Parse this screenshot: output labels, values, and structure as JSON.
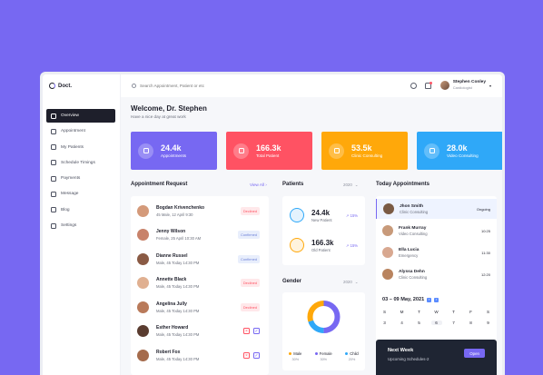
{
  "app": {
    "logo_text": "Doct."
  },
  "sidebar": {
    "items": [
      {
        "label": "Overview",
        "icon": "grid-icon",
        "active": true
      },
      {
        "label": "Appointment",
        "icon": "calendar-icon"
      },
      {
        "label": "My Patients",
        "icon": "user-icon"
      },
      {
        "label": "Schedule Timings",
        "icon": "clock-icon"
      },
      {
        "label": "Payments",
        "icon": "wallet-icon"
      },
      {
        "label": "Message",
        "icon": "chat-icon"
      },
      {
        "label": "Blog",
        "icon": "document-icon"
      },
      {
        "label": "Settings",
        "icon": "gear-icon"
      }
    ]
  },
  "topbar": {
    "search_placeholder": "Search Appointment, Patient or etc",
    "user_name": "Stephen Conley",
    "user_role": "Cardiologist"
  },
  "welcome": {
    "title": "Welcome, Dr. Stephen",
    "subtitle": "Have a nice day at great work"
  },
  "stats": [
    {
      "value": "24.4k",
      "label": "Appointments",
      "color": "#7768f2",
      "icon": "calendar-icon"
    },
    {
      "value": "166.3k",
      "label": "Total Patient",
      "color": "#ff5263",
      "icon": "user-icon"
    },
    {
      "value": "53.5k",
      "label": "Clinic Consulting",
      "color": "#ffa80a",
      "icon": "clinic-icon"
    },
    {
      "value": "28.0k",
      "label": "Video Consulting",
      "color": "#2fa8f8",
      "icon": "video-icon"
    }
  ],
  "requests": {
    "title": "Appointment Request",
    "view_all": "View All",
    "rows": [
      {
        "name": "Bogdan Krivenchenko",
        "meta": "45 Male, 12 April 9:30",
        "status": "Declined"
      },
      {
        "name": "Jenny Wilson",
        "meta": "Female, 25 April 10:30 AM",
        "status": "Confirmed"
      },
      {
        "name": "Dianne Russel",
        "meta": "Male, 45 Today 14:30 PM",
        "status": "Confirmed"
      },
      {
        "name": "Annette Black",
        "meta": "Male, 45 Today 14:30 PM",
        "status": "Declined"
      },
      {
        "name": "Angelina Jully",
        "meta": "Male, 45 Today 14:30 PM",
        "status": "Declined"
      },
      {
        "name": "Esther Howard",
        "meta": "Male, 45 Today 14:30 PM",
        "status": ""
      },
      {
        "name": "Robert Fox",
        "meta": "Male, 45 Today 14:30 PM",
        "status": ""
      }
    ]
  },
  "patients": {
    "title": "Patients",
    "year": "2020",
    "rows": [
      {
        "value": "24.4k",
        "label": "New Patient",
        "trend": "15%"
      },
      {
        "value": "166.3k",
        "label": "Old Patient",
        "trend": "15%"
      }
    ]
  },
  "gender": {
    "title": "Gender",
    "year": "2020",
    "legend": [
      {
        "label": "Male",
        "pct": "30%",
        "color": "#ffa80a"
      },
      {
        "label": "Female",
        "pct": "30%",
        "color": "#7768f2"
      },
      {
        "label": "Child",
        "pct": "20%",
        "color": "#2fa8f8"
      }
    ]
  },
  "today": {
    "title": "Today Appointments",
    "rows": [
      {
        "name": "Jhon Smith",
        "type": "Clinic Consulting",
        "time": "Ongoing",
        "active": true
      },
      {
        "name": "Frank Murray",
        "type": "Video Consulting",
        "time": "10:25"
      },
      {
        "name": "Ella Lucia",
        "type": "Emergency",
        "time": "11:30"
      },
      {
        "name": "Alyssa Dehn",
        "type": "Clinic Consulting",
        "time": "12:20"
      }
    ]
  },
  "calendar": {
    "title": "03 – 09 May, 2021",
    "days": [
      "S",
      "M",
      "T",
      "W",
      "T",
      "F",
      "S"
    ],
    "dates": [
      "3",
      "4",
      "5",
      "6",
      "7",
      "8",
      "9"
    ]
  },
  "next_week": {
    "title": "Next Week",
    "subtitle": "Upcoming Schedules-2",
    "button": "Open"
  }
}
